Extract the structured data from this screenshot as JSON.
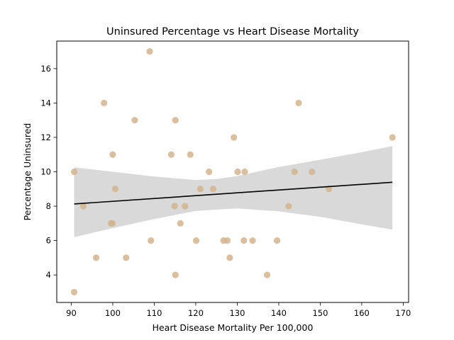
{
  "colors": {
    "points": "#d2b48c",
    "line": "#000000",
    "band": "#d9d9d9",
    "axis": "#000000",
    "background": "#ffffff"
  },
  "chart_data": {
    "type": "scatter",
    "title": "Uninsured Percentage vs Heart Disease Mortality",
    "xlabel": "Heart Disease Mortality Per 100,000",
    "ylabel": "Percentage Uninsured",
    "xlim": [
      86.5,
      171.3
    ],
    "ylim": [
      2.4,
      17.6
    ],
    "xticks": [
      90,
      100,
      110,
      120,
      130,
      140,
      150,
      160,
      170
    ],
    "yticks": [
      4,
      6,
      8,
      10,
      12,
      14,
      16
    ],
    "grid": false,
    "legend": "none",
    "points": [
      {
        "x": 90.7,
        "y": 10
      },
      {
        "x": 90.7,
        "y": 3
      },
      {
        "x": 92.9,
        "y": 8
      },
      {
        "x": 96.0,
        "y": 5
      },
      {
        "x": 97.9,
        "y": 14
      },
      {
        "x": 99.6,
        "y": 7
      },
      {
        "x": 99.9,
        "y": 7
      },
      {
        "x": 100.0,
        "y": 11
      },
      {
        "x": 100.6,
        "y": 9
      },
      {
        "x": 103.2,
        "y": 5
      },
      {
        "x": 105.3,
        "y": 13
      },
      {
        "x": 108.9,
        "y": 17
      },
      {
        "x": 109.2,
        "y": 6
      },
      {
        "x": 114.1,
        "y": 11
      },
      {
        "x": 114.9,
        "y": 8
      },
      {
        "x": 115.1,
        "y": 13
      },
      {
        "x": 115.1,
        "y": 4
      },
      {
        "x": 116.3,
        "y": 7
      },
      {
        "x": 117.4,
        "y": 8
      },
      {
        "x": 118.7,
        "y": 11
      },
      {
        "x": 120.1,
        "y": 6
      },
      {
        "x": 121.1,
        "y": 9
      },
      {
        "x": 123.2,
        "y": 10
      },
      {
        "x": 124.2,
        "y": 9
      },
      {
        "x": 126.7,
        "y": 6
      },
      {
        "x": 127.6,
        "y": 6
      },
      {
        "x": 128.2,
        "y": 5
      },
      {
        "x": 129.2,
        "y": 12
      },
      {
        "x": 130.1,
        "y": 10
      },
      {
        "x": 131.6,
        "y": 6
      },
      {
        "x": 131.8,
        "y": 10
      },
      {
        "x": 133.7,
        "y": 6
      },
      {
        "x": 137.2,
        "y": 4
      },
      {
        "x": 139.6,
        "y": 6
      },
      {
        "x": 142.4,
        "y": 8
      },
      {
        "x": 143.8,
        "y": 10
      },
      {
        "x": 144.8,
        "y": 14
      },
      {
        "x": 148.0,
        "y": 10
      },
      {
        "x": 152.1,
        "y": 9
      },
      {
        "x": 167.4,
        "y": 12
      }
    ],
    "regression_line": {
      "x": [
        90.7,
        167.4
      ],
      "y": [
        8.13,
        9.39
      ]
    },
    "confidence_band": {
      "x": [
        90.7,
        100,
        110,
        120,
        125,
        130,
        140,
        150,
        160,
        167.4
      ],
      "upper": [
        10.26,
        10.0,
        9.72,
        9.52,
        9.58,
        9.75,
        10.28,
        10.7,
        11.14,
        11.5
      ],
      "lower": [
        6.2,
        6.72,
        7.25,
        7.72,
        7.8,
        7.87,
        7.7,
        7.38,
        6.94,
        6.63
      ]
    }
  }
}
